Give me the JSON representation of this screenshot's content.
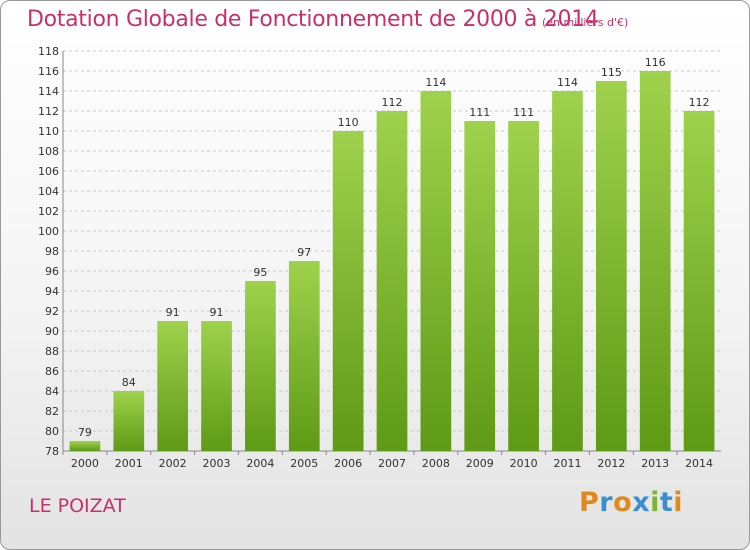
{
  "header": {
    "title": "Dotation Globale de Fonctionnement de 2000 à 2014",
    "subtitle": "(en milliers d'€)"
  },
  "footer": {
    "commune": "LE POIZAT",
    "brand": "Proxiti"
  },
  "colors": {
    "title": "#c8306a",
    "bar_light": "#9fd24c",
    "bar_dark": "#5e9a16"
  },
  "chart_data": {
    "type": "bar",
    "title": "Dotation Globale de Fonctionnement de 2000 à 2014",
    "subtitle": "(en milliers d'€)",
    "xlabel": "",
    "ylabel": "",
    "categories": [
      "2000",
      "2001",
      "2002",
      "2003",
      "2004",
      "2005",
      "2006",
      "2007",
      "2008",
      "2009",
      "2010",
      "2011",
      "2012",
      "2013",
      "2014"
    ],
    "values": [
      79,
      84,
      91,
      91,
      95,
      97,
      110,
      112,
      114,
      111,
      111,
      114,
      115,
      116,
      112
    ],
    "ylim": [
      78,
      118
    ],
    "ytick_step": 2,
    "grid": true,
    "legend": "none"
  }
}
